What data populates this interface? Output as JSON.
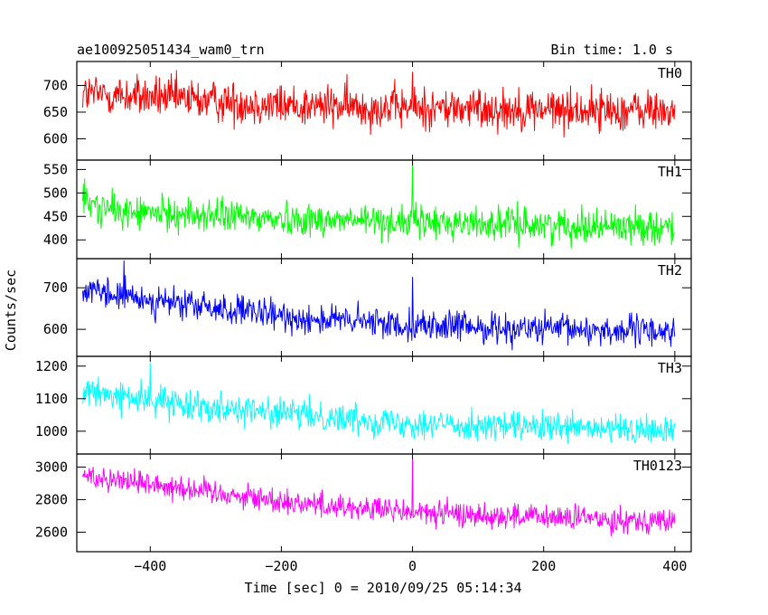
{
  "chart_data": {
    "type": "line",
    "title": "ae100925051434_wam0_trn",
    "bin_time_label": "Bin time: 1.0 s",
    "xlabel": "Time [sec] 0 = 2010/09/25 05:14:34",
    "ylabel": "Counts/sec",
    "xlim": [
      -512,
      425
    ],
    "x_ticks": [
      -400,
      -200,
      0,
      200,
      400
    ],
    "x_tick_labels": [
      "−400",
      "−200",
      "0",
      "200",
      "400"
    ],
    "x_data_range": [
      -503,
      400
    ],
    "bin_time_s": 1.0,
    "panels": [
      {
        "name": "TH0",
        "color": "#ff0000",
        "ylim": [
          560,
          745
        ],
        "y_ticks": [
          600,
          650,
          700
        ],
        "y_tick_labels": [
          "600",
          "650",
          "700"
        ],
        "trend": [
          [
            -503,
            685
          ],
          [
            -400,
            678
          ],
          [
            -200,
            663
          ],
          [
            0,
            658
          ],
          [
            200,
            655
          ],
          [
            400,
            652
          ]
        ],
        "noise": 28,
        "spikes": [
          [
            0,
            725
          ]
        ]
      },
      {
        "name": "TH1",
        "color": "#00ff00",
        "ylim": [
          360,
          570
        ],
        "y_ticks": [
          400,
          450,
          500,
          550
        ],
        "y_tick_labels": [
          "400",
          "450",
          "500",
          "550"
        ],
        "trend": [
          [
            -503,
            480
          ],
          [
            -450,
            460
          ],
          [
            -200,
            445
          ],
          [
            0,
            438
          ],
          [
            200,
            432
          ],
          [
            400,
            428
          ]
        ],
        "noise": 25,
        "spikes": [
          [
            0,
            565
          ],
          [
            -500,
            530
          ]
        ]
      },
      {
        "name": "TH2",
        "color": "#0000ff",
        "ylim": [
          535,
          770
        ],
        "y_ticks": [
          600,
          700
        ],
        "y_tick_labels": [
          "600",
          "700"
        ],
        "trend": [
          [
            -503,
            690
          ],
          [
            -400,
            670
          ],
          [
            -200,
            630
          ],
          [
            0,
            610
          ],
          [
            200,
            600
          ],
          [
            400,
            595
          ]
        ],
        "noise": 26,
        "spikes": [
          [
            0,
            725
          ],
          [
            -440,
            765
          ]
        ]
      },
      {
        "name": "TH3",
        "color": "#00ffff",
        "ylim": [
          930,
          1230
        ],
        "y_ticks": [
          1000,
          1100,
          1200
        ],
        "y_tick_labels": [
          "1000",
          "1100",
          "1200"
        ],
        "trend": [
          [
            -503,
            1120
          ],
          [
            -400,
            1095
          ],
          [
            -200,
            1055
          ],
          [
            0,
            1025
          ],
          [
            200,
            1010
          ],
          [
            400,
            1000
          ]
        ],
        "noise": 32,
        "spikes": [
          [
            -400,
            1210
          ]
        ]
      },
      {
        "name": "TH0123",
        "color": "#ff00ff",
        "ylim": [
          2480,
          3080
        ],
        "y_ticks": [
          2600,
          2800,
          3000
        ],
        "y_tick_labels": [
          "2600",
          "2800",
          "3000"
        ],
        "trend": [
          [
            -503,
            2950
          ],
          [
            -400,
            2900
          ],
          [
            -200,
            2790
          ],
          [
            0,
            2720
          ],
          [
            200,
            2690
          ],
          [
            400,
            2670
          ]
        ],
        "noise": 55,
        "spikes": [
          [
            0,
            3050
          ]
        ]
      }
    ]
  }
}
